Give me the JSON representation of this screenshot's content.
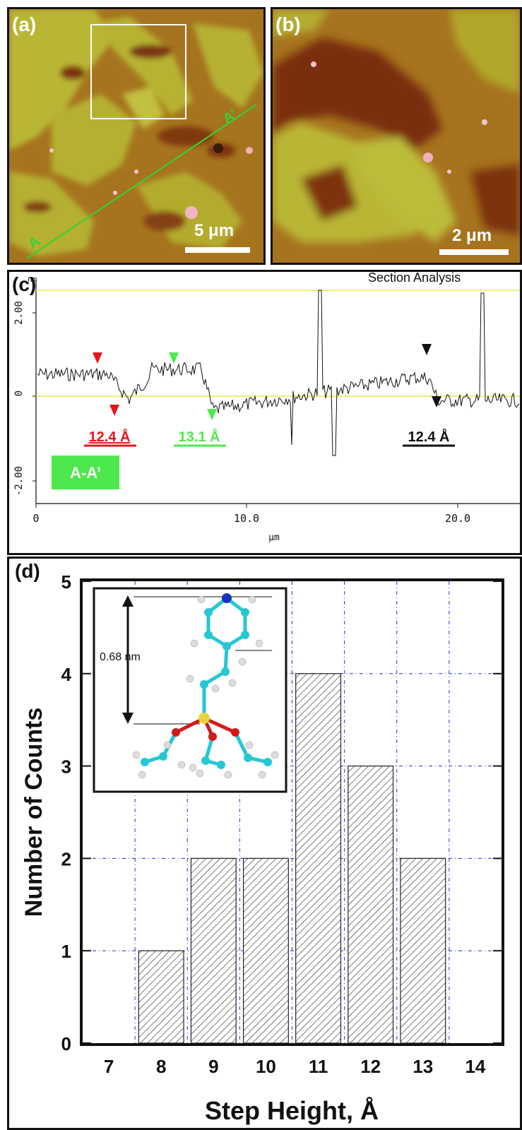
{
  "panels": {
    "a": {
      "label": "(a)",
      "scale": "5 μm",
      "line_start": "A",
      "line_end": "A’"
    },
    "b": {
      "label": "(b)",
      "scale": "2 μm"
    },
    "c": {
      "label": "(c)",
      "title": "Section Analysis",
      "ylabel_unit": "nm",
      "xlabel": "μm",
      "ytick_labels": [
        "2.00",
        "0",
        "-2.00"
      ],
      "xtick_labels": [
        "0",
        "10.0",
        "20.0"
      ],
      "line_badge": "A-A’",
      "steps": [
        {
          "text": "12.4 Å",
          "color": "#e8141c"
        },
        {
          "text": "13.1 Å",
          "color": "#4de84d"
        },
        {
          "text": "12.4 Å",
          "color": "#111111"
        }
      ]
    },
    "d": {
      "label": "(d)",
      "inset_label": "0.68 nm"
    }
  },
  "chart_data": {
    "type": "bar",
    "categories": [
      "7",
      "8",
      "9",
      "10",
      "11",
      "12",
      "13",
      "14"
    ],
    "values": [
      0,
      1,
      2,
      2,
      4,
      3,
      2,
      0
    ],
    "xlabel": "Step Height, Å",
    "ylabel": "Number of Counts",
    "ylim": [
      0,
      5
    ],
    "yticks": [
      "0",
      "1",
      "2",
      "3",
      "4",
      "5"
    ],
    "grid": true
  },
  "colors": {
    "afm_light": "#b8b830",
    "afm_mid": "#a77a20",
    "afm_dark": "#7a2e10",
    "line_green": "#34d334",
    "grid_blue": "#2030d0"
  }
}
